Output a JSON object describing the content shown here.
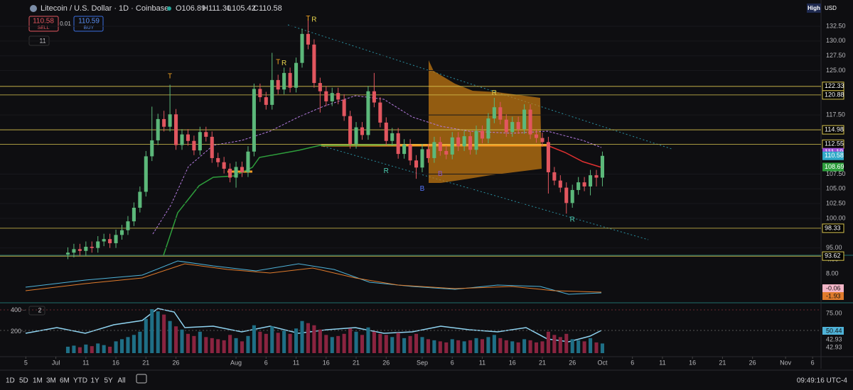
{
  "ui": {
    "symbol": "Litecoin / U.S. Dollar · 1D · Coinbase",
    "ohlc": [
      "O106.89",
      "H111.30",
      "L105.42",
      "C110.58"
    ],
    "sell_price": "110.58",
    "sell": "SELL",
    "spread": "0.01",
    "buy_price": "110.59",
    "buy": "BUY",
    "indicator_count": "11",
    "volume_indicator_count": "2",
    "high": "High",
    "currency": "USD",
    "ranges": [
      "1D",
      "5D",
      "1M",
      "3M",
      "6M",
      "YTD",
      "1Y",
      "5Y",
      "All"
    ],
    "clock": "09:49:16 UTC-4",
    "macd_axis": [
      "8.00",
      "4.00"
    ],
    "macd_labels": [
      "-0.06",
      "-1.93"
    ],
    "rsi_axis": [
      "75.00"
    ],
    "rsi_labels": [
      "50.44",
      "42.93",
      "42.93"
    ]
  },
  "chart_data": {
    "type": "candlestick",
    "x": [
      7,
      8,
      9,
      10,
      11,
      12,
      13,
      14,
      15,
      16,
      17,
      18,
      19,
      20,
      21,
      22,
      23,
      24,
      25,
      26,
      27,
      28,
      29,
      30,
      31,
      32,
      33,
      34,
      35,
      36,
      37,
      38,
      39,
      40,
      41,
      42,
      43,
      44,
      45,
      46,
      47,
      48,
      49,
      50,
      51,
      52,
      53,
      54,
      55,
      56,
      57,
      58,
      59,
      60,
      61,
      62,
      63,
      64,
      65,
      66,
      67,
      68,
      69,
      70,
      71,
      72,
      73,
      74,
      75,
      76,
      77,
      78,
      79,
      80,
      81,
      82,
      83,
      84,
      85,
      86,
      87,
      88,
      89,
      90,
      91,
      92,
      93,
      94,
      95,
      96
    ],
    "open": [
      93.9,
      94.2,
      94.8,
      94.5,
      95.2,
      95.0,
      96.1,
      96.5,
      95.8,
      97.2,
      98.0,
      99.5,
      101.8,
      104.5,
      110.5,
      113.2,
      116.8,
      115.5,
      117.6,
      112.4,
      114.2,
      113.1,
      111.5,
      114.6,
      113.8,
      110.2,
      109.5,
      108.4,
      106.9,
      108.7,
      107.8,
      111.3,
      121.9,
      120.5,
      119.2,
      123.4,
      121.8,
      124.6,
      122.1,
      126.3,
      131.2,
      129.4,
      122.9,
      121.5,
      119.8,
      121.2,
      120.1,
      117.3,
      112.6,
      115.4,
      114.1,
      121.5,
      119.6,
      116.2,
      113.1,
      114.4,
      110.9,
      112.5,
      109.8,
      108.6,
      111.7,
      110.2,
      112.9,
      111.4,
      110.8,
      113.7,
      112.2,
      113.9,
      111.6,
      114.8,
      113.5,
      116.9,
      118.8,
      116.7,
      114.6,
      116.3,
      115.1,
      118.4,
      114.2,
      113.6,
      112.9,
      107.8,
      106.4,
      105.2,
      102.6,
      104.8,
      106.1,
      105.4,
      107.3,
      106.89
    ],
    "high": [
      95.1,
      95.7,
      95.7,
      96.1,
      96.1,
      97.0,
      97.4,
      97.4,
      98.1,
      98.9,
      100.4,
      102.7,
      105.4,
      111.4,
      118.9,
      117.7,
      118.2,
      122.6,
      118.5,
      115.1,
      115.1,
      114.0,
      115.5,
      115.5,
      114.7,
      111.1,
      110.4,
      109.3,
      109.6,
      109.6,
      112.2,
      122.8,
      122.8,
      121.4,
      128.0,
      124.3,
      125.5,
      125.5,
      127.2,
      132.1,
      133.7,
      130.3,
      123.8,
      122.4,
      122.1,
      122.1,
      121.0,
      118.2,
      116.3,
      116.3,
      122.4,
      124.6,
      120.5,
      117.1,
      115.3,
      115.3,
      113.4,
      113.4,
      110.7,
      112.6,
      112.6,
      113.8,
      113.8,
      112.3,
      114.6,
      114.6,
      114.8,
      114.8,
      115.7,
      115.7,
      117.8,
      120.4,
      119.7,
      117.6,
      117.2,
      117.2,
      119.3,
      119.3,
      115.1,
      114.5,
      113.8,
      108.7,
      107.3,
      106.1,
      105.7,
      107.0,
      107.0,
      108.2,
      108.2,
      111.3
    ],
    "low": [
      93.1,
      93.4,
      93.7,
      93.7,
      94.2,
      94.2,
      95.3,
      95.0,
      95.0,
      96.4,
      97.2,
      98.7,
      101.0,
      103.7,
      109.7,
      112.4,
      114.7,
      114.7,
      111.6,
      111.6,
      112.3,
      110.7,
      110.7,
      113.0,
      109.4,
      108.7,
      107.6,
      106.1,
      105.2,
      107.0,
      107.0,
      110.5,
      119.7,
      118.4,
      118.4,
      121.0,
      121.0,
      121.3,
      121.3,
      125.5,
      128.6,
      122.1,
      117.9,
      119.0,
      119.0,
      119.3,
      116.5,
      111.8,
      111.8,
      113.3,
      113.3,
      118.8,
      115.4,
      112.3,
      112.3,
      110.1,
      110.1,
      109.0,
      106.7,
      107.8,
      109.4,
      109.4,
      110.6,
      110.0,
      110.0,
      111.4,
      111.4,
      110.8,
      110.8,
      112.7,
      112.7,
      116.1,
      115.9,
      113.8,
      113.8,
      114.3,
      114.3,
      113.4,
      112.8,
      112.1,
      104.2,
      105.6,
      104.4,
      100.8,
      101.8,
      104.0,
      104.6,
      103.9,
      105.4,
      105.42
    ],
    "close": [
      94.2,
      94.8,
      94.5,
      95.2,
      95.0,
      96.1,
      96.5,
      95.8,
      97.2,
      98.0,
      99.5,
      101.8,
      104.5,
      110.5,
      113.2,
      116.8,
      115.5,
      117.6,
      112.4,
      114.2,
      113.1,
      111.5,
      114.6,
      113.8,
      110.2,
      109.5,
      108.4,
      106.9,
      108.7,
      107.8,
      111.3,
      121.9,
      120.5,
      119.2,
      123.4,
      121.8,
      124.6,
      122.1,
      126.3,
      131.2,
      129.4,
      122.9,
      121.5,
      119.8,
      121.2,
      120.1,
      117.3,
      112.6,
      115.4,
      114.1,
      121.5,
      119.6,
      116.2,
      113.1,
      114.4,
      110.9,
      112.5,
      109.8,
      108.6,
      111.7,
      110.2,
      112.9,
      111.4,
      110.8,
      113.7,
      112.2,
      113.9,
      111.6,
      114.8,
      113.5,
      116.9,
      118.8,
      116.7,
      114.6,
      116.3,
      115.1,
      118.4,
      114.2,
      113.6,
      112.9,
      107.8,
      106.4,
      105.2,
      102.6,
      104.8,
      106.1,
      105.4,
      107.3,
      106.89,
      110.58
    ],
    "volume": [
      60,
      70,
      55,
      80,
      65,
      90,
      75,
      60,
      110,
      130,
      150,
      170,
      200,
      320,
      410,
      390,
      360,
      300,
      250,
      220,
      180,
      160,
      200,
      150,
      140,
      130,
      120,
      170,
      140,
      110,
      160,
      260,
      200,
      180,
      250,
      190,
      210,
      180,
      230,
      300,
      280,
      260,
      220,
      170,
      150,
      160,
      180,
      230,
      200,
      170,
      240,
      200,
      180,
      170,
      150,
      190,
      140,
      160,
      180,
      150,
      130,
      120,
      110,
      100,
      130,
      120,
      110,
      120,
      140,
      130,
      150,
      170,
      140,
      120,
      110,
      100,
      130,
      120,
      100,
      110,
      200,
      170,
      150,
      180,
      130,
      120,
      110,
      140,
      100,
      90
    ],
    "up_color": "#5cb87a",
    "down_color": "#e2565f",
    "xlim": [
      -4.3,
      132.4
    ],
    "xticks": [
      {
        "value": 0,
        "label": "5"
      },
      {
        "value": 5,
        "label": "Jul"
      },
      {
        "value": 10,
        "label": "11"
      },
      {
        "value": 15,
        "label": "16"
      },
      {
        "value": 20,
        "label": "21"
      },
      {
        "value": 25,
        "label": "26"
      },
      {
        "value": 35,
        "label": "Aug"
      },
      {
        "value": 40,
        "label": "6"
      },
      {
        "value": 45,
        "label": "11"
      },
      {
        "value": 50,
        "label": "16"
      },
      {
        "value": 55,
        "label": "21"
      },
      {
        "value": 60,
        "label": "26"
      },
      {
        "value": 66,
        "label": "Sep"
      },
      {
        "value": 71,
        "label": "6"
      },
      {
        "value": 76,
        "label": "11"
      },
      {
        "value": 81,
        "label": "16"
      },
      {
        "value": 86,
        "label": "21"
      },
      {
        "value": 91,
        "label": "26"
      },
      {
        "value": 96,
        "label": "Oct"
      },
      {
        "value": 101,
        "label": "6"
      },
      {
        "value": 106,
        "label": "11"
      },
      {
        "value": 111,
        "label": "16"
      },
      {
        "value": 116,
        "label": "21"
      },
      {
        "value": 121,
        "label": "26"
      },
      {
        "value": 126.5,
        "label": "Nov"
      },
      {
        "value": 131,
        "label": "6"
      }
    ],
    "ylim": [
      93.76,
      134.3
    ],
    "yticks": [
      {
        "value": 95,
        "label": "95.00"
      },
      {
        "value": 100,
        "label": "100.00"
      },
      {
        "value": 102.5,
        "label": "102.50"
      },
      {
        "value": 105,
        "label": "105.00"
      },
      {
        "value": 107.5,
        "label": "107.50"
      },
      {
        "value": 117.5,
        "label": "117.50"
      },
      {
        "value": 125,
        "label": "125.00"
      },
      {
        "value": 127.5,
        "label": "127.50"
      },
      {
        "value": 130,
        "label": "130.00"
      },
      {
        "value": 132.5,
        "label": "132.50"
      }
    ],
    "vlim": [
      0,
      450
    ],
    "vticks": [
      200,
      400
    ],
    "levels": [
      {
        "value": 122.33,
        "color": "#d9c64f"
      },
      {
        "value": 120.88,
        "color": "#d9c64f"
      },
      {
        "value": 114.98,
        "color": "#d9c64f"
      },
      {
        "value": 112.55,
        "color": "#d9c64f"
      },
      {
        "value": 98.33,
        "color": "#d9c64f"
      },
      {
        "value": 93.62,
        "color": "#d9c64f"
      }
    ],
    "price_labels": [
      {
        "value": 111.19,
        "color": "#9c4fd6"
      },
      {
        "value": 110.58,
        "color": "#2fa8c8"
      },
      {
        "value": 108.69,
        "color": "#2e9e3c"
      }
    ],
    "annotations": [
      {
        "text": "T",
        "x": 47,
        "y": 133.8,
        "color": "#f5a623"
      },
      {
        "text": "R",
        "x": 48,
        "y": 133.6,
        "color": "#e8d44d"
      },
      {
        "text": "T",
        "x": 42,
        "y": 126.4,
        "color": "#f5a623"
      },
      {
        "text": "R",
        "x": 43,
        "y": 126.2,
        "color": "#e8d44d"
      },
      {
        "text": "T",
        "x": 24,
        "y": 124.0,
        "color": "#f5a623"
      },
      {
        "text": "R",
        "x": 60,
        "y": 108.0,
        "color": "#4fd1b5"
      },
      {
        "text": "B",
        "x": 66,
        "y": 105.0,
        "color": "#5577ff"
      },
      {
        "text": "B",
        "x": 69,
        "y": 107.5,
        "color": "#8a55cc"
      },
      {
        "text": "R",
        "x": 78,
        "y": 121.2,
        "color": "#e8d44d"
      },
      {
        "text": "R",
        "x": 91,
        "y": 99.8,
        "color": "#4fd1b5"
      }
    ]
  }
}
